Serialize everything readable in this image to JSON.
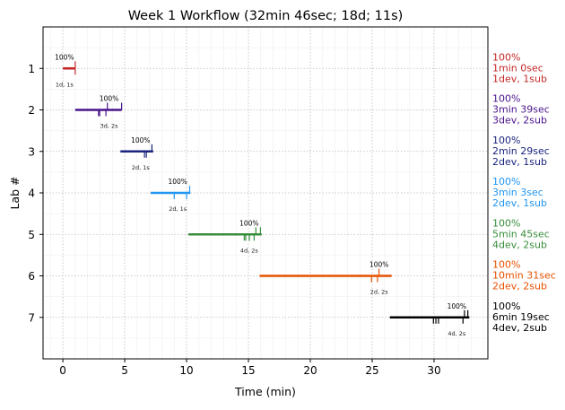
{
  "chart_data": {
    "type": "timeline",
    "title": "Week 1 Workflow (32min 46sec; 18d; 11s)",
    "xlabel": "Time (min)",
    "ylabel": "Lab #",
    "xlim": [
      -1.6,
      34.35
    ],
    "ylim": [
      8,
      0
    ],
    "xticks": [
      0,
      5,
      10,
      15,
      20,
      25,
      30
    ],
    "yticks": [
      1,
      2,
      3,
      4,
      5,
      6,
      7
    ],
    "grid": true,
    "series": [
      {
        "lab": 1,
        "color": "#c62828",
        "start": 0.0,
        "end": 1.0,
        "dev_marks": [
          1.0
        ],
        "sub_marks": [
          1.0
        ],
        "pct": "100%",
        "counts": "1d, 1s",
        "side": [
          "100%",
          "1min 0sec",
          "1dev, 1sub"
        ]
      },
      {
        "lab": 2,
        "color": "#4a148c",
        "start": 1.0,
        "end": 4.75,
        "dev_marks": [
          3.6,
          4.75
        ],
        "sub_marks": [
          2.88,
          2.98,
          3.48
        ],
        "pct": "100%",
        "counts": "3d, 2s",
        "side": [
          "100%",
          "3min 39sec",
          "3dev, 2sub"
        ]
      },
      {
        "lab": 3,
        "color": "#1a237e",
        "start": 4.65,
        "end": 7.3,
        "dev_marks": [
          7.2
        ],
        "sub_marks": [
          6.6,
          6.75
        ],
        "pct": "100%",
        "counts": "2d, 1s",
        "side": [
          "100%",
          "2min 29sec",
          "2dev, 1sub"
        ]
      },
      {
        "lab": 4,
        "color": "#2196f3",
        "start": 7.1,
        "end": 10.3,
        "dev_marks": [
          10.25
        ],
        "sub_marks": [
          9.0,
          10.0
        ],
        "pct": "100%",
        "counts": "2d, 1s",
        "side": [
          "100%",
          "3min 3sec",
          "2dev, 1sub"
        ]
      },
      {
        "lab": 5,
        "color": "#388e3c",
        "start": 10.15,
        "end": 16.07,
        "dev_marks": [
          15.6,
          15.97
        ],
        "sub_marks": [
          14.66,
          14.78,
          15.07,
          15.46
        ],
        "pct": "100%",
        "counts": "4d, 2s",
        "side": [
          "100%",
          "5min 45sec",
          "4dev, 2sub"
        ]
      },
      {
        "lab": 6,
        "color": "#e65100",
        "start": 15.9,
        "end": 26.57,
        "dev_marks": [
          25.55
        ],
        "sub_marks": [
          24.95,
          25.43
        ],
        "pct": "100%",
        "counts": "2d, 2s",
        "side": [
          "100%",
          "10min 31sec",
          "2dev, 2sub"
        ]
      },
      {
        "lab": 7,
        "color": "#000000",
        "start": 26.43,
        "end": 32.85,
        "dev_marks": [
          32.46,
          32.73
        ],
        "sub_marks": [
          29.95,
          30.15,
          30.36,
          32.34
        ],
        "pct": "100%",
        "counts": "4d, 2s",
        "side": [
          "100%",
          "6min 19sec",
          "4dev, 2sub"
        ]
      }
    ]
  }
}
